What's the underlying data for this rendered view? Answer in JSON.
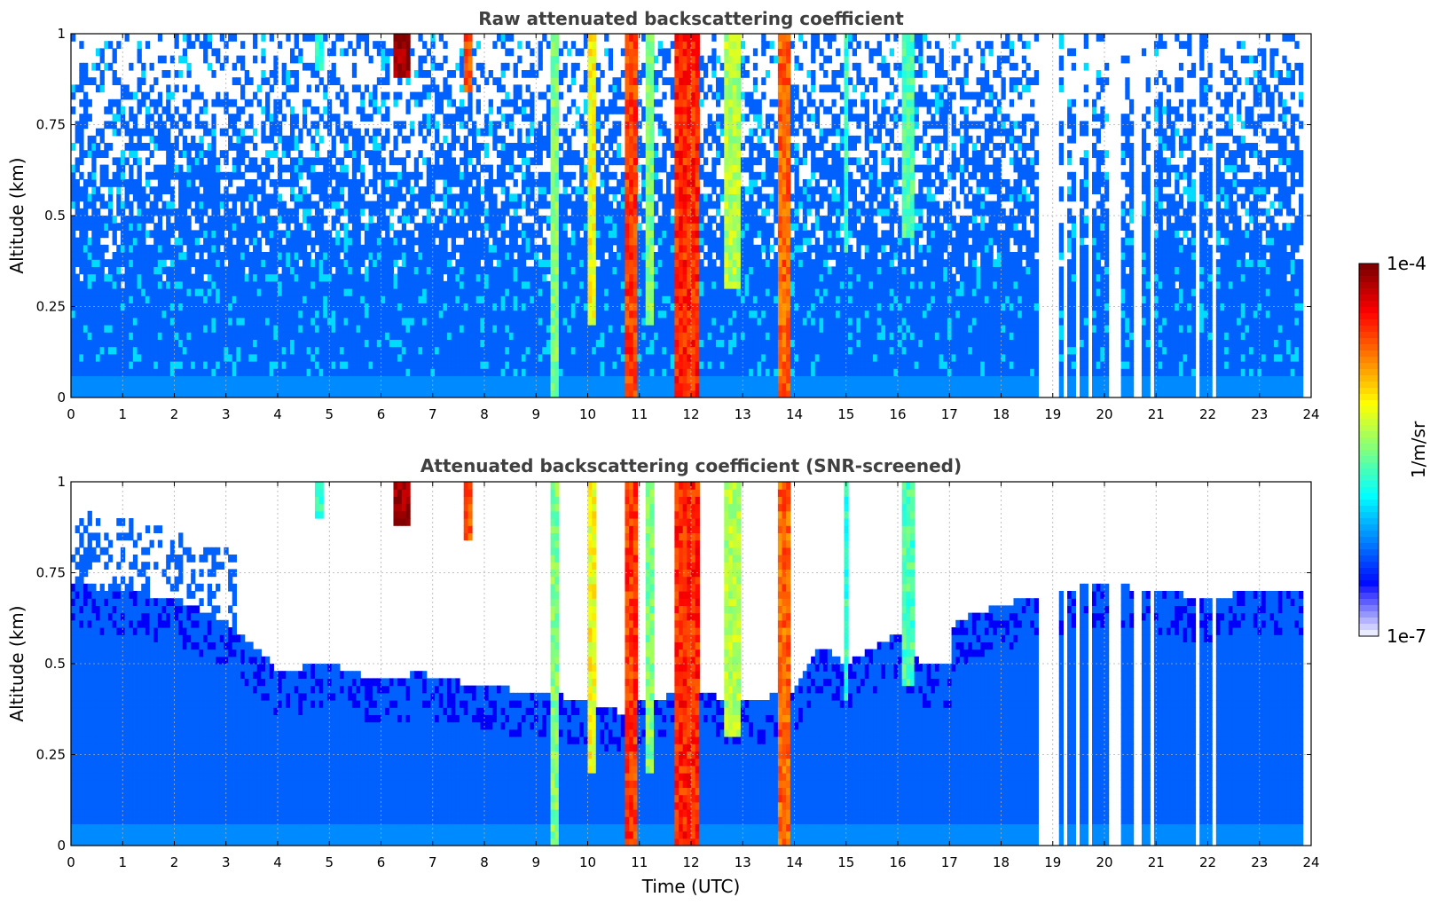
{
  "chart_data": [
    {
      "type": "heatmap",
      "title": "Raw attenuated backscattering coefficient",
      "xlabel": "",
      "ylabel": "Altitude (km)",
      "xlim": [
        0,
        24
      ],
      "ylim": [
        0,
        1
      ],
      "x_ticks": [
        "0",
        "1",
        "2",
        "3",
        "4",
        "5",
        "6",
        "7",
        "8",
        "9",
        "10",
        "11",
        "12",
        "13",
        "14",
        "15",
        "16",
        "17",
        "18",
        "19",
        "20",
        "21",
        "22",
        "23",
        "24"
      ],
      "y_ticks": [
        "0",
        "0.25",
        "0.5",
        "0.75",
        "1"
      ],
      "grid": true,
      "colorscale": "jet",
      "value_range": [
        "1e-7",
        "1e-4"
      ],
      "background_level": 0.22,
      "noise_onset_altitude_km": 0.3,
      "data_coverage_end_utc": 23.8,
      "vertical_features": [
        {
          "time_utc": 4.8,
          "width_h": 0.15,
          "level": 0.42,
          "bottom_km": 0.9
        },
        {
          "time_utc": 6.4,
          "width_h": 0.3,
          "level": 0.98,
          "bottom_km": 0.88
        },
        {
          "time_utc": 7.7,
          "width_h": 0.08,
          "level": 0.8,
          "bottom_km": 0.85
        },
        {
          "time_utc": 9.4,
          "width_h": 0.1,
          "level": 0.5,
          "bottom_km": 0.0
        },
        {
          "time_utc": 10.1,
          "width_h": 0.06,
          "level": 0.62,
          "bottom_km": 0.2
        },
        {
          "time_utc": 10.85,
          "width_h": 0.12,
          "level": 0.82,
          "bottom_km": 0.0
        },
        {
          "time_utc": 11.2,
          "width_h": 0.08,
          "level": 0.5,
          "bottom_km": 0.2
        },
        {
          "time_utc": 11.95,
          "width_h": 0.4,
          "level": 0.84,
          "bottom_km": 0.0
        },
        {
          "time_utc": 12.8,
          "width_h": 0.3,
          "level": 0.55,
          "bottom_km": 0.3
        },
        {
          "time_utc": 13.8,
          "width_h": 0.14,
          "level": 0.78,
          "bottom_km": 0.0
        },
        {
          "time_utc": 15.0,
          "width_h": 0.08,
          "level": 0.42,
          "bottom_km": 0.4
        },
        {
          "time_utc": 16.2,
          "width_h": 0.25,
          "level": 0.45,
          "bottom_km": 0.45
        }
      ],
      "dropout_times_utc": [
        18.8,
        18.95,
        19.1,
        19.25,
        19.45,
        19.7,
        20.15,
        20.3,
        20.6,
        20.65,
        20.7,
        20.9,
        21.8,
        22.1
      ]
    },
    {
      "type": "heatmap",
      "title": "Attenuated backscattering coefficient (SNR-screened)",
      "xlabel": "Time (UTC)",
      "ylabel": "Altitude (km)",
      "xlim": [
        0,
        24
      ],
      "ylim": [
        0,
        1
      ],
      "x_ticks": [
        "0",
        "1",
        "2",
        "3",
        "4",
        "5",
        "6",
        "7",
        "8",
        "9",
        "10",
        "11",
        "12",
        "13",
        "14",
        "15",
        "16",
        "17",
        "18",
        "19",
        "20",
        "21",
        "22",
        "23",
        "24"
      ],
      "y_ticks": [
        "0",
        "0.25",
        "0.5",
        "0.75",
        "1"
      ],
      "grid": true,
      "colorscale": "jet",
      "value_range": [
        "1e-7",
        "1e-4"
      ],
      "screened_top_km": [
        [
          0,
          0.72
        ],
        [
          1,
          0.7
        ],
        [
          2,
          0.68
        ],
        [
          3,
          0.62
        ],
        [
          3.8,
          0.52
        ],
        [
          4,
          0.48
        ],
        [
          5,
          0.5
        ],
        [
          6,
          0.45
        ],
        [
          6.8,
          0.48
        ],
        [
          7,
          0.46
        ],
        [
          8,
          0.44
        ],
        [
          9,
          0.42
        ],
        [
          10,
          0.4
        ],
        [
          10.7,
          0.36
        ],
        [
          11,
          0.4
        ],
        [
          12,
          0.42
        ],
        [
          13,
          0.4
        ],
        [
          14,
          0.42
        ],
        [
          14.5,
          0.55
        ],
        [
          15,
          0.5
        ],
        [
          16,
          0.58
        ],
        [
          16.5,
          0.5
        ],
        [
          17,
          0.5
        ],
        [
          17.1,
          0.62
        ],
        [
          18,
          0.66
        ],
        [
          19,
          0.7
        ],
        [
          20,
          0.72
        ],
        [
          21,
          0.7
        ],
        [
          22,
          0.68
        ],
        [
          23,
          0.7
        ],
        [
          23.8,
          0.7
        ]
      ]
    }
  ],
  "colorbar": {
    "max_label": "1e-4",
    "min_label": "1e-7",
    "unit_label": "1/m/sr"
  }
}
